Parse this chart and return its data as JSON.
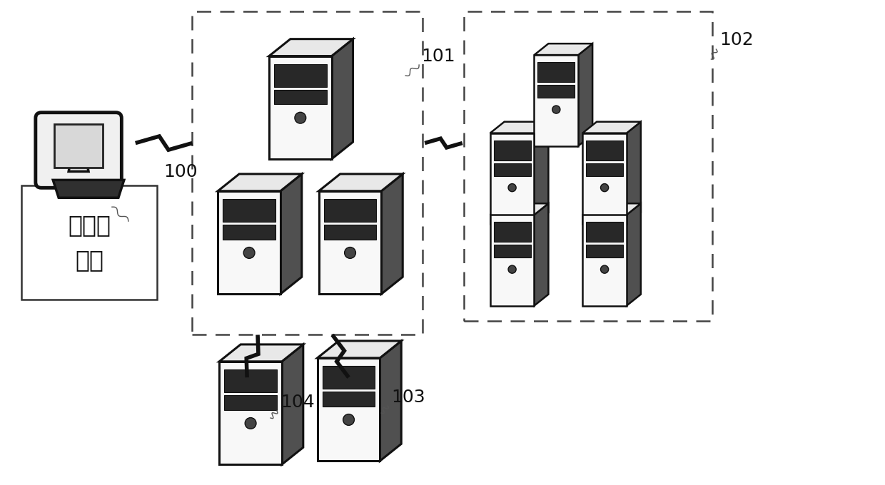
{
  "bg_color": "#ffffff",
  "label_100": "100",
  "label_101": "101",
  "label_102": "102",
  "label_103": "103",
  "label_104": "104",
  "box_text": "第三方\n应用",
  "figsize": [
    12.4,
    6.8
  ],
  "dpi": 100
}
